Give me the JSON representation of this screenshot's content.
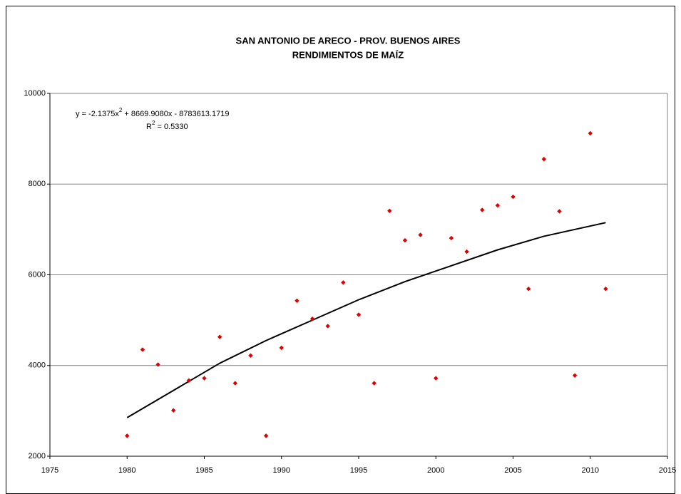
{
  "chart_data": {
    "type": "scatter",
    "title": [
      "SAN ANTONIO DE ARECO - PROV. BUENOS AIRES",
      "RENDIMIENTOS DE MAÍZ"
    ],
    "equation": [
      "y = -2.1375x",
      "2",
      " + 8669.9080x - 8783613.1719"
    ],
    "r_squared": [
      "R",
      "2",
      " = 0.5330"
    ],
    "series": [
      {
        "color": "#e00000",
        "x": [
          1980,
          1981,
          1982,
          1983,
          1984,
          1985,
          1986,
          1987,
          1988,
          1989,
          1990,
          1991,
          1992,
          1993,
          1994,
          1995,
          1996,
          1997,
          1998,
          1999,
          2000,
          2001,
          2002,
          2003,
          2004,
          2005,
          2006,
          2007,
          2008,
          2009,
          2010,
          2011
        ],
        "values": [
          2450,
          4350,
          4020,
          3010,
          3670,
          3720,
          4630,
          3610,
          4220,
          2450,
          4390,
          5430,
          5030,
          4870,
          5830,
          5120,
          3610,
          7410,
          6760,
          6880,
          3720,
          6810,
          6510,
          7430,
          7530,
          7720,
          5690,
          8550,
          7400,
          3780,
          9120,
          5690
        ]
      }
    ],
    "trendline": {
      "color": "#000000",
      "x": [
        1980,
        1983,
        1986,
        1989,
        1992,
        1995,
        1998,
        2001,
        2004,
        2007,
        2011
      ],
      "values": [
        2850,
        3450,
        4050,
        4550,
        5000,
        5450,
        5850,
        6200,
        6550,
        6850,
        7150
      ]
    },
    "xlim": [
      1975,
      2015
    ],
    "xticks": [
      1975,
      1980,
      1985,
      1990,
      1995,
      2000,
      2005,
      2010,
      2015
    ],
    "ylim": [
      2000,
      10000
    ],
    "yticks": [
      2000,
      4000,
      6000,
      8000,
      10000
    ],
    "grid": true
  }
}
